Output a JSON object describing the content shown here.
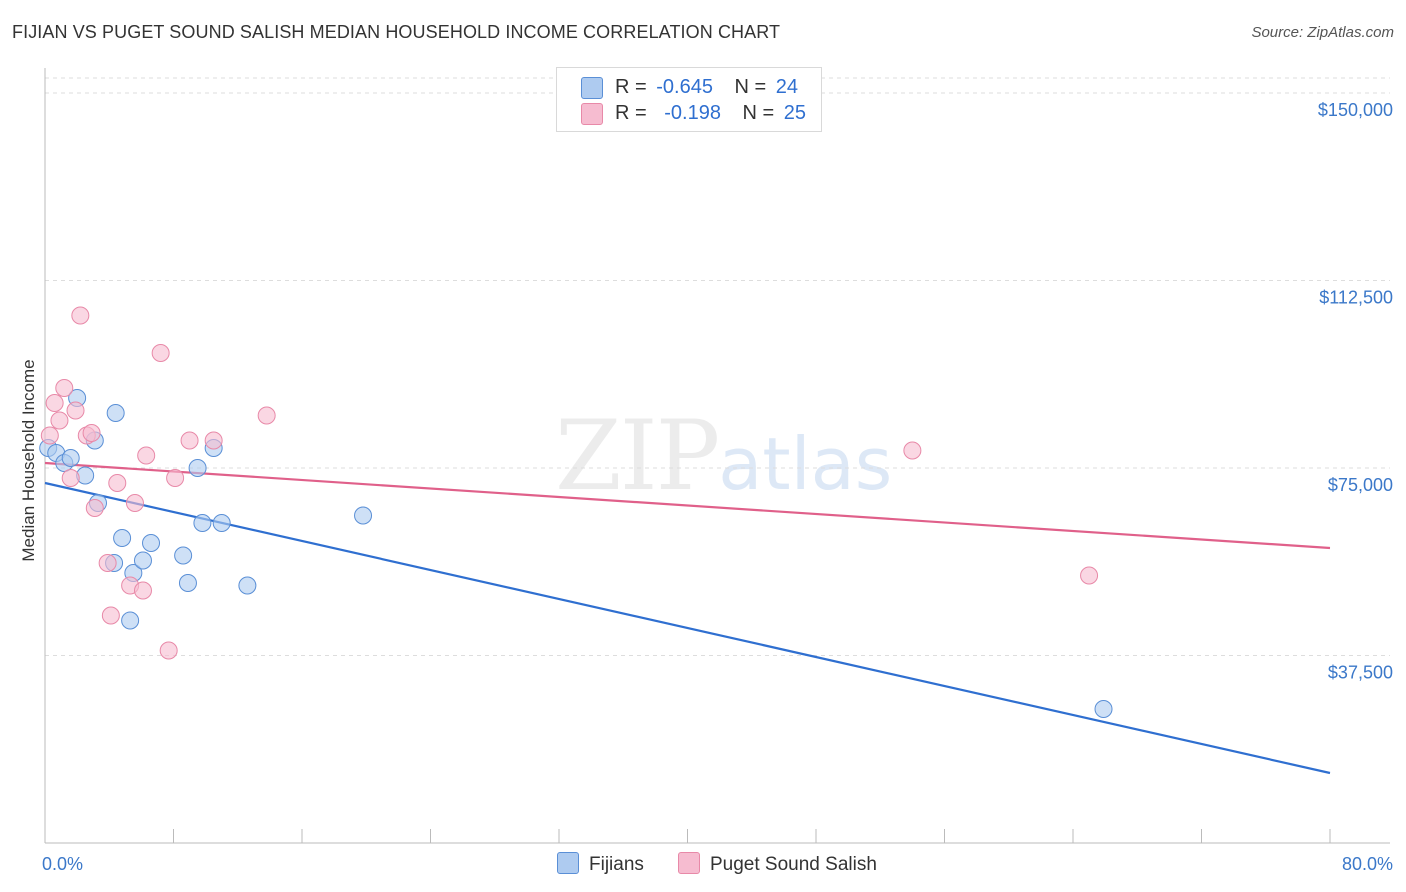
{
  "header": {
    "title": "FIJIAN VS PUGET SOUND SALISH MEDIAN HOUSEHOLD INCOME CORRELATION CHART",
    "source": "Source: ZipAtlas.com"
  },
  "watermark": {
    "zip": "ZIP",
    "atlas": "atlas"
  },
  "legend": {
    "rows": [
      {
        "r_label": "R =",
        "r_value": "-0.645",
        "n_label": "N =",
        "n_value": "24",
        "color": "#aecbf0"
      },
      {
        "r_label": "R =",
        "r_value": "-0.198",
        "n_label": "N =",
        "n_value": "25",
        "color": "#f6bcd0"
      }
    ]
  },
  "bottom_legend": {
    "fijians": "Fijians",
    "puget": "Puget Sound Salish"
  },
  "chart_data": {
    "type": "scatter",
    "title": "FIJIAN VS PUGET SOUND SALISH MEDIAN HOUSEHOLD INCOME CORRELATION CHART",
    "xlabel": "",
    "ylabel": "Median Household Income",
    "xlim": [
      0,
      80
    ],
    "ylim": [
      0,
      153000
    ],
    "x_tick_labels": [
      "0.0%",
      "80.0%"
    ],
    "y_tick_values": [
      37500,
      75000,
      112500,
      150000
    ],
    "y_tick_labels": [
      "$37,500",
      "$75,000",
      "$112,500",
      "$150,000"
    ],
    "series": [
      {
        "name": "Fijians",
        "color": "#aecbf0",
        "stroke": "#5a8fd6",
        "line_color": "#2f6fd0",
        "trend": {
          "x": [
            0,
            80
          ],
          "y": [
            72000,
            14000
          ]
        },
        "points": [
          {
            "x": 0.2,
            "y": 79000
          },
          {
            "x": 0.7,
            "y": 78000
          },
          {
            "x": 1.2,
            "y": 76000
          },
          {
            "x": 1.6,
            "y": 77000
          },
          {
            "x": 2.0,
            "y": 89000
          },
          {
            "x": 2.5,
            "y": 73500
          },
          {
            "x": 3.1,
            "y": 80500
          },
          {
            "x": 3.3,
            "y": 68000
          },
          {
            "x": 4.3,
            "y": 56000
          },
          {
            "x": 4.4,
            "y": 86000
          },
          {
            "x": 4.8,
            "y": 61000
          },
          {
            "x": 5.3,
            "y": 44500
          },
          {
            "x": 5.5,
            "y": 54000
          },
          {
            "x": 6.1,
            "y": 56500
          },
          {
            "x": 6.6,
            "y": 60000
          },
          {
            "x": 8.6,
            "y": 57500
          },
          {
            "x": 8.9,
            "y": 52000
          },
          {
            "x": 9.5,
            "y": 75000
          },
          {
            "x": 9.8,
            "y": 64000
          },
          {
            "x": 10.5,
            "y": 79000
          },
          {
            "x": 11.0,
            "y": 64000
          },
          {
            "x": 12.6,
            "y": 51500
          },
          {
            "x": 19.8,
            "y": 65500
          },
          {
            "x": 65.9,
            "y": 26800
          }
        ]
      },
      {
        "name": "Puget Sound Salish",
        "color": "#f6bcd0",
        "stroke": "#e889a8",
        "line_color": "#e0608a",
        "trend": {
          "x": [
            0,
            80
          ],
          "y": [
            76000,
            59000
          ]
        },
        "points": [
          {
            "x": 0.3,
            "y": 81500
          },
          {
            "x": 0.6,
            "y": 88000
          },
          {
            "x": 0.9,
            "y": 84500
          },
          {
            "x": 1.2,
            "y": 91000
          },
          {
            "x": 1.6,
            "y": 73000
          },
          {
            "x": 1.9,
            "y": 86500
          },
          {
            "x": 2.2,
            "y": 105500
          },
          {
            "x": 2.6,
            "y": 81500
          },
          {
            "x": 2.9,
            "y": 82000
          },
          {
            "x": 3.1,
            "y": 67000
          },
          {
            "x": 3.9,
            "y": 56000
          },
          {
            "x": 4.1,
            "y": 45500
          },
          {
            "x": 4.5,
            "y": 72000
          },
          {
            "x": 5.3,
            "y": 51500
          },
          {
            "x": 5.6,
            "y": 68000
          },
          {
            "x": 6.1,
            "y": 50500
          },
          {
            "x": 6.3,
            "y": 77500
          },
          {
            "x": 7.2,
            "y": 98000
          },
          {
            "x": 7.7,
            "y": 38500
          },
          {
            "x": 8.1,
            "y": 73000
          },
          {
            "x": 9.0,
            "y": 80500
          },
          {
            "x": 10.5,
            "y": 80500
          },
          {
            "x": 13.8,
            "y": 85500
          },
          {
            "x": 54.0,
            "y": 78500
          },
          {
            "x": 65.0,
            "y": 53500
          }
        ]
      }
    ]
  }
}
